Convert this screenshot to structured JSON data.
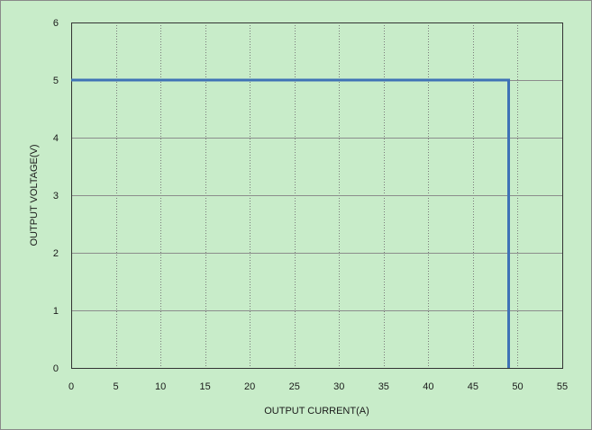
{
  "chart_data": {
    "type": "line",
    "title": "",
    "xlabel": "OUTPUT CURRENT(A)",
    "ylabel": "OUTPUT VOLTAGE(V)",
    "xlim": [
      0,
      55
    ],
    "ylim": [
      0,
      6
    ],
    "x_ticks": [
      0,
      5,
      10,
      15,
      20,
      25,
      30,
      35,
      40,
      45,
      50,
      55
    ],
    "y_ticks": [
      0,
      1,
      2,
      3,
      4,
      5,
      6
    ],
    "grid": true,
    "legend": "none",
    "series": [
      {
        "x": [
          0,
          49,
          49
        ],
        "y": [
          5,
          5,
          0
        ],
        "color": "#3f72b6"
      }
    ],
    "colors": {
      "background": "#c8ecc9",
      "plot_border": "#333333",
      "grid_vertical": "#7a7a7a",
      "grid_horizontal": "#8c8c8c"
    }
  }
}
